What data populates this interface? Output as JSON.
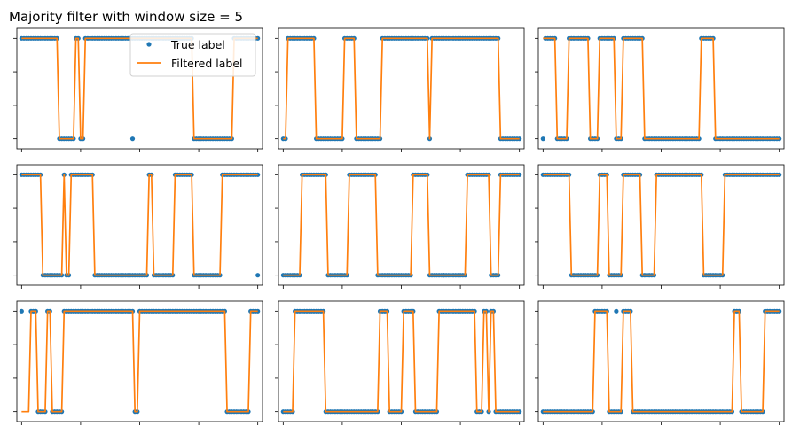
{
  "figure": {
    "title": "Majority filter with window size = 5"
  },
  "legend": {
    "true_label": "True label",
    "filtered_label": "Filtered label",
    "placement": "upper-right of first panel"
  },
  "colors": {
    "true_label": "#1f77b4",
    "filtered_label": "#ff7f0e",
    "axes": "#000000",
    "background": "#ffffff"
  },
  "chart_data": [
    {
      "type": "line",
      "panel": 1,
      "xlim": [
        -2,
        102
      ],
      "ylim": [
        -0.1,
        1.1
      ],
      "grid": false,
      "xticks": [
        0,
        25,
        50,
        75,
        100
      ],
      "yticks": [
        0,
        0.333,
        0.667,
        1
      ],
      "tick_labels": "none",
      "true_segments": [
        [
          0,
          1
        ],
        [
          16,
          0
        ],
        [
          23,
          1
        ],
        [
          25,
          0
        ],
        [
          27,
          1
        ],
        [
          73,
          0
        ],
        [
          90,
          1
        ],
        [
          100,
          1
        ]
      ],
      "true_outliers": [
        [
          47,
          0
        ]
      ],
      "filtered_segments": [
        [
          0,
          1
        ],
        [
          16,
          0
        ],
        [
          23,
          1
        ],
        [
          25,
          0
        ],
        [
          27,
          1
        ],
        [
          73,
          0
        ],
        [
          90,
          1
        ],
        [
          100,
          1
        ]
      ]
    },
    {
      "type": "line",
      "panel": 2,
      "xlim": [
        -2,
        102
      ],
      "ylim": [
        -0.1,
        1.1
      ],
      "grid": false,
      "xticks": [
        0,
        25,
        50,
        75,
        100
      ],
      "yticks": [
        0,
        0.333,
        0.667,
        1
      ],
      "tick_labels": "none",
      "true_segments": [
        [
          0,
          0
        ],
        [
          2,
          1
        ],
        [
          14,
          0
        ],
        [
          26,
          1
        ],
        [
          31,
          0
        ],
        [
          42,
          1
        ],
        [
          62,
          0
        ],
        [
          63,
          1
        ],
        [
          92,
          0
        ],
        [
          100,
          0
        ]
      ],
      "true_outliers": [],
      "filtered_segments": [
        [
          0,
          0
        ],
        [
          2,
          1
        ],
        [
          14,
          0
        ],
        [
          26,
          1
        ],
        [
          31,
          0
        ],
        [
          42,
          1
        ],
        [
          62,
          0
        ],
        [
          63,
          1
        ],
        [
          92,
          0
        ],
        [
          100,
          0
        ]
      ]
    },
    {
      "type": "line",
      "panel": 3,
      "xlim": [
        -2,
        102
      ],
      "ylim": [
        -0.1,
        1.1
      ],
      "grid": false,
      "xticks": [
        0,
        25,
        50,
        75,
        100
      ],
      "yticks": [
        0,
        0.333,
        0.667,
        1
      ],
      "tick_labels": "none",
      "true_segments": [
        [
          1,
          1
        ],
        [
          6,
          0
        ],
        [
          11,
          1
        ],
        [
          20,
          0
        ],
        [
          24,
          1
        ],
        [
          31,
          0
        ],
        [
          34,
          1
        ],
        [
          43,
          0
        ],
        [
          67,
          1
        ],
        [
          73,
          0
        ],
        [
          100,
          0
        ]
      ],
      "true_outliers": [
        [
          0,
          0
        ]
      ],
      "filtered_segments": [
        [
          0,
          1
        ],
        [
          6,
          0
        ],
        [
          11,
          1
        ],
        [
          20,
          0
        ],
        [
          24,
          1
        ],
        [
          31,
          0
        ],
        [
          34,
          1
        ],
        [
          43,
          0
        ],
        [
          67,
          1
        ],
        [
          73,
          0
        ],
        [
          100,
          0
        ]
      ]
    },
    {
      "type": "line",
      "panel": 4,
      "xlim": [
        -2,
        102
      ],
      "ylim": [
        -0.1,
        1.1
      ],
      "grid": false,
      "xticks": [
        0,
        25,
        50,
        75,
        100
      ],
      "yticks": [
        0,
        0.333,
        0.667,
        1
      ],
      "tick_labels": "none",
      "true_segments": [
        [
          0,
          1
        ],
        [
          9,
          0
        ],
        [
          18,
          1
        ],
        [
          19,
          0
        ],
        [
          21,
          1
        ],
        [
          31,
          0
        ],
        [
          54,
          1
        ],
        [
          56,
          0
        ],
        [
          65,
          1
        ],
        [
          73,
          0
        ],
        [
          85,
          1
        ],
        [
          100,
          1
        ]
      ],
      "true_outliers": [
        [
          100,
          0
        ]
      ],
      "filtered_segments": [
        [
          0,
          1
        ],
        [
          9,
          0
        ],
        [
          18,
          1
        ],
        [
          19,
          0
        ],
        [
          21,
          1
        ],
        [
          31,
          0
        ],
        [
          54,
          1
        ],
        [
          56,
          0
        ],
        [
          65,
          1
        ],
        [
          73,
          0
        ],
        [
          85,
          1
        ],
        [
          100,
          1
        ]
      ]
    },
    {
      "type": "line",
      "panel": 5,
      "xlim": [
        -2,
        102
      ],
      "ylim": [
        -0.1,
        1.1
      ],
      "grid": false,
      "xticks": [
        0,
        25,
        50,
        75,
        100
      ],
      "yticks": [
        0,
        0.333,
        0.667,
        1
      ],
      "tick_labels": "none",
      "true_segments": [
        [
          0,
          0
        ],
        [
          8,
          1
        ],
        [
          19,
          0
        ],
        [
          28,
          1
        ],
        [
          40,
          0
        ],
        [
          55,
          1
        ],
        [
          62,
          0
        ],
        [
          78,
          1
        ],
        [
          88,
          0
        ],
        [
          92,
          1
        ],
        [
          100,
          1
        ]
      ],
      "true_outliers": [
        [
          68,
          0
        ]
      ],
      "filtered_segments": [
        [
          0,
          0
        ],
        [
          8,
          1
        ],
        [
          19,
          0
        ],
        [
          28,
          1
        ],
        [
          40,
          0
        ],
        [
          55,
          1
        ],
        [
          62,
          0
        ],
        [
          78,
          1
        ],
        [
          88,
          0
        ],
        [
          92,
          1
        ],
        [
          100,
          1
        ]
      ]
    },
    {
      "type": "line",
      "panel": 6,
      "xlim": [
        -2,
        102
      ],
      "ylim": [
        -0.1,
        1.1
      ],
      "grid": false,
      "xticks": [
        0,
        25,
        50,
        75,
        100
      ],
      "yticks": [
        0,
        0.333,
        0.667,
        1
      ],
      "tick_labels": "none",
      "true_segments": [
        [
          0,
          1
        ],
        [
          12,
          0
        ],
        [
          24,
          1
        ],
        [
          28,
          0
        ],
        [
          34,
          1
        ],
        [
          42,
          0
        ],
        [
          48,
          1
        ],
        [
          68,
          0
        ],
        [
          77,
          1
        ],
        [
          100,
          1
        ]
      ],
      "true_outliers": [],
      "filtered_segments": [
        [
          0,
          1
        ],
        [
          12,
          0
        ],
        [
          24,
          1
        ],
        [
          28,
          0
        ],
        [
          34,
          1
        ],
        [
          42,
          0
        ],
        [
          48,
          1
        ],
        [
          68,
          0
        ],
        [
          77,
          1
        ],
        [
          100,
          1
        ]
      ]
    },
    {
      "type": "line",
      "panel": 7,
      "xlim": [
        -2,
        102
      ],
      "ylim": [
        -0.1,
        1.1
      ],
      "grid": false,
      "xticks": [
        0,
        25,
        50,
        75,
        100
      ],
      "yticks": [
        0,
        0.333,
        0.667,
        1
      ],
      "tick_labels": "none",
      "true_segments": [
        [
          4,
          1
        ],
        [
          7,
          0
        ],
        [
          11,
          1
        ],
        [
          13,
          0
        ],
        [
          18,
          1
        ],
        [
          48,
          0
        ],
        [
          50,
          1
        ],
        [
          87,
          0
        ],
        [
          97,
          1
        ],
        [
          100,
          1
        ]
      ],
      "true_outliers": [
        [
          0,
          1
        ]
      ],
      "filtered_segments": [
        [
          0,
          0
        ],
        [
          4,
          1
        ],
        [
          7,
          0
        ],
        [
          11,
          1
        ],
        [
          13,
          0
        ],
        [
          18,
          1
        ],
        [
          48,
          0
        ],
        [
          50,
          1
        ],
        [
          87,
          0
        ],
        [
          97,
          1
        ],
        [
          100,
          1
        ]
      ]
    },
    {
      "type": "line",
      "panel": 8,
      "xlim": [
        -2,
        102
      ],
      "ylim": [
        -0.1,
        1.1
      ],
      "grid": false,
      "xticks": [
        0,
        25,
        50,
        75,
        100
      ],
      "yticks": [
        0,
        0.333,
        0.667,
        1
      ],
      "tick_labels": "none",
      "true_segments": [
        [
          0,
          0
        ],
        [
          5,
          1
        ],
        [
          18,
          0
        ],
        [
          41,
          1
        ],
        [
          45,
          0
        ],
        [
          51,
          1
        ],
        [
          56,
          0
        ],
        [
          66,
          1
        ],
        [
          82,
          0
        ],
        [
          85,
          1
        ],
        [
          87,
          0
        ],
        [
          88,
          1
        ],
        [
          90,
          0
        ],
        [
          100,
          0
        ]
      ],
      "true_outliers": [],
      "filtered_segments": [
        [
          0,
          0
        ],
        [
          5,
          1
        ],
        [
          18,
          0
        ],
        [
          41,
          1
        ],
        [
          45,
          0
        ],
        [
          51,
          1
        ],
        [
          56,
          0
        ],
        [
          66,
          1
        ],
        [
          82,
          0
        ],
        [
          85,
          1
        ],
        [
          87,
          0
        ],
        [
          88,
          1
        ],
        [
          90,
          0
        ],
        [
          100,
          0
        ]
      ]
    },
    {
      "type": "line",
      "panel": 9,
      "xlim": [
        -2,
        102
      ],
      "ylim": [
        -0.1,
        1.1
      ],
      "grid": false,
      "xticks": [
        0,
        25,
        50,
        75,
        100
      ],
      "yticks": [
        0,
        0.333,
        0.667,
        1
      ],
      "tick_labels": "none",
      "true_segments": [
        [
          0,
          0
        ],
        [
          22,
          1
        ],
        [
          28,
          0
        ],
        [
          34,
          1
        ],
        [
          38,
          0
        ],
        [
          81,
          1
        ],
        [
          84,
          0
        ],
        [
          94,
          1
        ],
        [
          100,
          1
        ]
      ],
      "true_outliers": [
        [
          31,
          1
        ]
      ],
      "filtered_segments": [
        [
          0,
          0
        ],
        [
          22,
          1
        ],
        [
          28,
          0
        ],
        [
          34,
          1
        ],
        [
          38,
          0
        ],
        [
          81,
          1
        ],
        [
          84,
          0
        ],
        [
          94,
          1
        ],
        [
          100,
          1
        ]
      ]
    }
  ]
}
